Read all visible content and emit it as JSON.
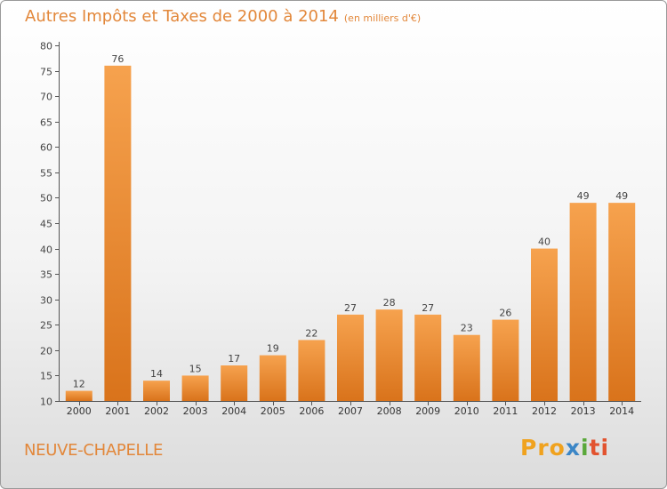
{
  "chart_data": {
    "type": "bar",
    "title": "Autres Impôts et Taxes de 2000 à 2014",
    "subtitle": "(en milliers d'€)",
    "categories": [
      "2000",
      "2001",
      "2002",
      "2003",
      "2004",
      "2005",
      "2006",
      "2007",
      "2008",
      "2009",
      "2010",
      "2011",
      "2012",
      "2013",
      "2014"
    ],
    "values": [
      12,
      76,
      14,
      15,
      17,
      19,
      22,
      27,
      28,
      27,
      23,
      26,
      40,
      49,
      49
    ],
    "ylim": [
      10,
      80
    ],
    "yticks": [
      10,
      15,
      20,
      25,
      30,
      35,
      40,
      45,
      50,
      55,
      60,
      65,
      70,
      75,
      80
    ],
    "grid": false,
    "bar_color": "#f0973a",
    "bar_color_dark": "#d9731b"
  },
  "commune": "NEUVE-CHAPELLE",
  "logo": {
    "part1": "Pro",
    "part2": "x",
    "part3": "i",
    "part4": "ti"
  },
  "colors": {
    "title": "#e2873a",
    "accent": "#f0973a"
  }
}
